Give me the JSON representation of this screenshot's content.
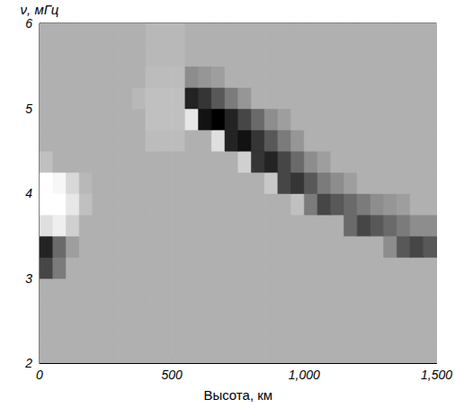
{
  "chart_data": {
    "type": "heatmap",
    "x_label": "Высота, км",
    "y_label": "ν, мГц",
    "x": [
      25,
      75,
      125,
      175,
      225,
      275,
      325,
      375,
      425,
      475,
      525,
      575,
      625,
      675,
      725,
      775,
      825,
      875,
      925,
      975,
      1025,
      1075,
      1125,
      1175,
      1225,
      1275,
      1325,
      1375,
      1425,
      1475
    ],
    "y": [
      2.125,
      2.375,
      2.625,
      2.875,
      3.125,
      3.375,
      3.625,
      3.875,
      4.125,
      4.375,
      4.625,
      4.875,
      5.125,
      5.375,
      5.625,
      5.875
    ],
    "z": [
      [
        0,
        0,
        0,
        0,
        0,
        0,
        0,
        0,
        0,
        0,
        0,
        0,
        0,
        0,
        0,
        0,
        0,
        0,
        0,
        0,
        0,
        0,
        0,
        0,
        0,
        0,
        0,
        0,
        0,
        0
      ],
      [
        0,
        0,
        0,
        0,
        0,
        0,
        0,
        0,
        0,
        0,
        0,
        0,
        0,
        0,
        0,
        0,
        0,
        0,
        0,
        0,
        0,
        0,
        0,
        0,
        0,
        0,
        0,
        0,
        0,
        0
      ],
      [
        0,
        0,
        0,
        0,
        0,
        0,
        0,
        0,
        0,
        0,
        0,
        0,
        0,
        0,
        0,
        0,
        0,
        0,
        0,
        0,
        0,
        0,
        0,
        0,
        0,
        0,
        0,
        0,
        0,
        0
      ],
      [
        0,
        0,
        0,
        0,
        0,
        0,
        0,
        0,
        0,
        0,
        0,
        0,
        0,
        0,
        0,
        0,
        0,
        0,
        0,
        0,
        0,
        0,
        0,
        0,
        0,
        0,
        0,
        0,
        0,
        0
      ],
      [
        0.6,
        0.3,
        0,
        0,
        0,
        0,
        0,
        0,
        0,
        0,
        0,
        0,
        0,
        0,
        0,
        0,
        0,
        0,
        0,
        0,
        0,
        0,
        0,
        0,
        0,
        0,
        0,
        0,
        0,
        0
      ],
      [
        0.8,
        0.4,
        0.1,
        0,
        0,
        0,
        0,
        0,
        0,
        0,
        0,
        0,
        0,
        0,
        0,
        0,
        0,
        0,
        0,
        0,
        0,
        0,
        0,
        0,
        0,
        0,
        0.2,
        0.5,
        0.6,
        0.5
      ],
      [
        -0.6,
        -0.8,
        -0.4,
        0,
        0,
        0,
        0,
        0,
        0,
        0,
        0,
        0,
        0,
        0,
        0,
        0,
        0,
        0,
        0,
        0,
        0,
        0,
        0,
        0.4,
        0.6,
        0.5,
        0.4,
        0.3,
        0.2,
        0.2
      ],
      [
        -1,
        -1,
        -0.7,
        -0.2,
        0,
        0,
        0,
        0,
        0,
        0,
        0,
        0,
        0,
        0,
        0,
        0,
        0,
        0,
        0,
        -0.2,
        0.3,
        0.6,
        0.5,
        0.4,
        0.3,
        0.2,
        0.15,
        0.1,
        0,
        0
      ],
      [
        -1,
        -0.9,
        -0.5,
        -0.1,
        0,
        0,
        0,
        0,
        0,
        0,
        0,
        0,
        0,
        0,
        0,
        0,
        0,
        -0.3,
        0.6,
        0.7,
        0.5,
        0.3,
        0.2,
        0.1,
        0,
        0,
        0,
        0,
        0,
        0
      ],
      [
        -0.2,
        0,
        0,
        0,
        0,
        0,
        0,
        0,
        0,
        0,
        0,
        0,
        0,
        0,
        0,
        -0.4,
        0.7,
        0.8,
        0.6,
        0.4,
        0.2,
        0.1,
        0,
        0,
        0,
        0,
        0,
        0,
        0,
        0
      ],
      [
        0,
        0,
        0,
        0,
        0,
        0,
        0,
        0,
        -0.15,
        -0.15,
        -0.15,
        0,
        0,
        -0.6,
        0.8,
        0.9,
        0.7,
        0.5,
        0.3,
        0.15,
        0,
        0,
        0,
        0,
        0,
        0,
        0,
        0,
        0,
        0
      ],
      [
        0,
        0,
        0,
        0,
        0,
        0,
        0,
        0,
        -0.2,
        -0.2,
        -0.2,
        -0.7,
        0.9,
        1,
        0.8,
        0.6,
        0.4,
        0.2,
        0.1,
        0,
        0,
        0,
        0,
        0,
        0,
        0,
        0,
        0,
        0,
        0
      ],
      [
        0,
        0,
        0,
        0,
        0,
        0,
        0,
        -0.1,
        -0.2,
        -0.2,
        -0.2,
        0.8,
        0.7,
        0.5,
        0.3,
        0.15,
        0,
        0,
        0,
        0,
        0,
        0,
        0,
        0,
        0,
        0,
        0,
        0,
        0,
        0
      ],
      [
        0,
        0,
        0,
        0,
        0,
        0,
        0,
        0,
        -0.15,
        -0.15,
        -0.15,
        0.2,
        0.15,
        0.1,
        0,
        0,
        0,
        0,
        0,
        0,
        0,
        0,
        0,
        0,
        0,
        0,
        0,
        0,
        0,
        0
      ],
      [
        0,
        0,
        0,
        0,
        0,
        0,
        0,
        0,
        -0.1,
        -0.1,
        -0.1,
        0,
        0,
        0,
        0,
        0,
        0,
        0,
        0,
        0,
        0,
        0,
        0,
        0,
        0,
        0,
        0,
        0,
        0,
        0
      ],
      [
        0,
        0,
        0,
        0,
        0,
        0,
        0,
        0,
        -0.1,
        -0.1,
        -0.1,
        0,
        0,
        0,
        0,
        0,
        0,
        0,
        0,
        0,
        0,
        0,
        0,
        0,
        0,
        0,
        0,
        0,
        0,
        0
      ]
    ],
    "zlim": [
      -1,
      1
    ],
    "xlim": [
      0,
      1500
    ],
    "xticks": [
      0,
      500,
      1000,
      1500
    ],
    "ylim": [
      2,
      6
    ],
    "yticks": [
      2,
      3,
      4,
      5,
      6
    ],
    "grid": false
  }
}
